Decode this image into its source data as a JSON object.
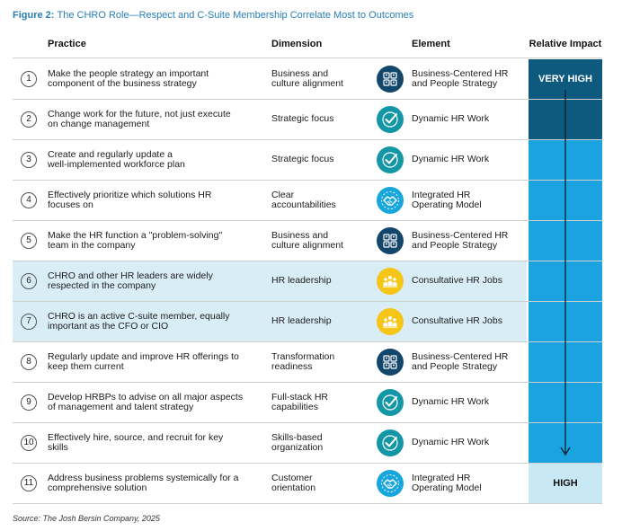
{
  "figure": {
    "label": "Figure 2:",
    "title": "The CHRO Role—Respect and C-Suite Membership Correlate Most to Outcomes"
  },
  "headers": {
    "practice": "Practice",
    "dimension": "Dimension",
    "element": "Element",
    "impact": "Relative Impact"
  },
  "impact_levels": {
    "top": "VERY HIGH",
    "bottom": "HIGH"
  },
  "colors": {
    "very_high": "#0e5a7e",
    "mid": "#1aa3df",
    "high": "#c9e8f6",
    "icon_navy": "#13466b",
    "icon_teal": "#1397a6",
    "icon_cyan": "#16a6dc",
    "icon_yellow": "#f5c518",
    "highlight_row": "#d9edf7"
  },
  "rows": [
    {
      "num": "1",
      "practice_l1": "Make the people strategy an important",
      "practice_l2": "component of the business strategy",
      "dim_l1": "Business and",
      "dim_l2": "culture alignment",
      "icon": "people-strategy-icon",
      "elem_l1": "Business-Centered HR",
      "elem_l2": "and People Strategy"
    },
    {
      "num": "2",
      "practice_l1": "Change work for the future, not just execute",
      "practice_l2": "on change management",
      "dim_l1": "Strategic focus",
      "dim_l2": "",
      "icon": "checkmark-icon",
      "elem_l1": "Dynamic HR Work",
      "elem_l2": ""
    },
    {
      "num": "3",
      "practice_l1": "Create and regularly update a",
      "practice_l2": "well-implemented workforce plan",
      "dim_l1": "Strategic focus",
      "dim_l2": "",
      "icon": "checkmark-icon",
      "elem_l1": "Dynamic HR Work",
      "elem_l2": ""
    },
    {
      "num": "4",
      "practice_l1": "Effectively prioritize which solutions HR",
      "practice_l2": "focuses on",
      "dim_l1": "Clear",
      "dim_l2": "accountabilities",
      "icon": "handshake-icon",
      "elem_l1": "Integrated HR",
      "elem_l2": "Operating Model"
    },
    {
      "num": "5",
      "practice_l1": "Make the HR function a \"problem-solving\"",
      "practice_l2": "team in the company",
      "dim_l1": "Business and",
      "dim_l2": "culture alignment",
      "icon": "people-strategy-icon",
      "elem_l1": "Business-Centered HR",
      "elem_l2": "and People Strategy"
    },
    {
      "num": "6",
      "practice_l1": "CHRO and other HR leaders are widely",
      "practice_l2": "respected in the company",
      "dim_l1": "HR leadership",
      "dim_l2": "",
      "icon": "team-icon",
      "elem_l1": "Consultative HR Jobs",
      "elem_l2": ""
    },
    {
      "num": "7",
      "practice_l1": "CHRO is an active C-suite member, equally",
      "practice_l2": "important as the CFO or CIO",
      "dim_l1": "HR leadership",
      "dim_l2": "",
      "icon": "team-icon",
      "elem_l1": "Consultative HR Jobs",
      "elem_l2": ""
    },
    {
      "num": "8",
      "practice_l1": "Regularly update and improve HR offerings to",
      "practice_l2": "keep them current",
      "dim_l1": "Transformation",
      "dim_l2": "readiness",
      "icon": "people-strategy-icon",
      "elem_l1": "Business-Centered HR",
      "elem_l2": "and People Strategy"
    },
    {
      "num": "9",
      "practice_l1": "Develop HRBPs to advise on all major aspects",
      "practice_l2": "of management and talent strategy",
      "dim_l1": "Full-stack HR",
      "dim_l2": "capabilities",
      "icon": "checkmark-icon",
      "elem_l1": "Dynamic HR Work",
      "elem_l2": ""
    },
    {
      "num": "10",
      "practice_l1": "Effectively hire, source, and recruit for key",
      "practice_l2": "skills",
      "dim_l1": "Skills-based",
      "dim_l2": "organization",
      "icon": "checkmark-icon",
      "elem_l1": "Dynamic HR Work",
      "elem_l2": ""
    },
    {
      "num": "11",
      "practice_l1": "Address business problems systemically for a",
      "practice_l2": "comprehensive solution",
      "dim_l1": "Customer",
      "dim_l2": "orientation",
      "icon": "handshake-icon",
      "elem_l1": "Integrated HR",
      "elem_l2": "Operating Model"
    }
  ],
  "source": "Source: The Josh Bersin Company, 2025"
}
